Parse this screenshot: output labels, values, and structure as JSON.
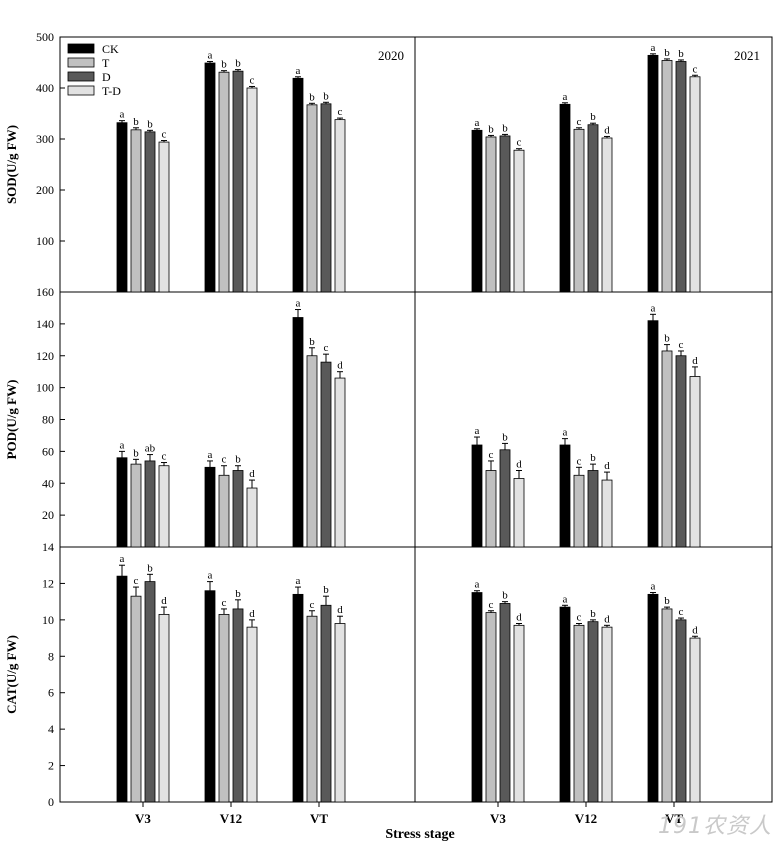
{
  "colors": {
    "CK": "#000000",
    "T": "#c0c0c0",
    "D": "#595959",
    "T-D": "#e2e2e2"
  },
  "legend": {
    "placement": "top-left",
    "entries": [
      "CK",
      "T",
      "D",
      "T-D"
    ]
  },
  "xlabel": "Stress stage",
  "chart_data": [
    {
      "type": "bar",
      "panel": "SOD",
      "year": "2020",
      "ylabel": "SOD(U/g FW)",
      "ylim": [
        0,
        500
      ],
      "yticks": [
        100,
        200,
        300,
        400,
        500
      ],
      "categories": [
        "V3",
        "V12",
        "VT"
      ],
      "series": [
        {
          "name": "CK",
          "values": [
            332,
            449,
            419
          ],
          "err": [
            4,
            3,
            3
          ],
          "letters": [
            "a",
            "a",
            "a"
          ]
        },
        {
          "name": "T",
          "values": [
            318,
            431,
            367
          ],
          "err": [
            4,
            3,
            3
          ],
          "letters": [
            "b",
            "b",
            "b"
          ]
        },
        {
          "name": "D",
          "values": [
            314,
            433,
            369
          ],
          "err": [
            3,
            3,
            3
          ],
          "letters": [
            "b",
            "b",
            "b"
          ]
        },
        {
          "name": "T-D",
          "values": [
            294,
            400,
            338
          ],
          "err": [
            3,
            3,
            3
          ],
          "letters": [
            "c",
            "c",
            "c"
          ]
        }
      ]
    },
    {
      "type": "bar",
      "panel": "SOD",
      "year": "2021",
      "ylim": [
        0,
        500
      ],
      "categories": [
        "V3",
        "V12",
        "VT"
      ],
      "series": [
        {
          "name": "CK",
          "values": [
            317,
            368,
            464
          ],
          "err": [
            3,
            3,
            3
          ],
          "letters": [
            "a",
            "a",
            "a"
          ]
        },
        {
          "name": "T",
          "values": [
            304,
            319,
            454
          ],
          "err": [
            3,
            3,
            3
          ],
          "letters": [
            "b",
            "c",
            "b"
          ]
        },
        {
          "name": "D",
          "values": [
            306,
            328,
            452
          ],
          "err": [
            3,
            3,
            3
          ],
          "letters": [
            "b",
            "b",
            "b"
          ]
        },
        {
          "name": "T-D",
          "values": [
            278,
            302,
            422
          ],
          "err": [
            3,
            3,
            3
          ],
          "letters": [
            "c",
            "d",
            "c"
          ]
        }
      ]
    },
    {
      "type": "bar",
      "panel": "POD",
      "ylabel": "POD(U/g FW)",
      "ylim": [
        0,
        160
      ],
      "yticks": [
        20,
        40,
        60,
        80,
        100,
        120,
        140,
        160
      ],
      "categories": [
        "V3",
        "V12",
        "VT"
      ],
      "series": [
        {
          "name": "CK",
          "values": [
            56,
            50,
            144
          ],
          "err": [
            4,
            4,
            5
          ],
          "letters": [
            "a",
            "a",
            "a"
          ]
        },
        {
          "name": "T",
          "values": [
            52,
            45,
            120
          ],
          "err": [
            3,
            6,
            5
          ],
          "letters": [
            "b",
            "c",
            "b"
          ]
        },
        {
          "name": "D",
          "values": [
            54,
            48,
            116
          ],
          "err": [
            4,
            3,
            5
          ],
          "letters": [
            "ab",
            "b",
            "c"
          ]
        },
        {
          "name": "T-D",
          "values": [
            51,
            37,
            106
          ],
          "err": [
            2,
            5,
            4
          ],
          "letters": [
            "c",
            "d",
            "d"
          ]
        }
      ]
    },
    {
      "type": "bar",
      "panel": "POD",
      "ylim": [
        0,
        160
      ],
      "categories": [
        "V3",
        "V12",
        "VT"
      ],
      "series": [
        {
          "name": "CK",
          "values": [
            64,
            64,
            142
          ],
          "err": [
            5,
            4,
            4
          ],
          "letters": [
            "a",
            "a",
            "a"
          ]
        },
        {
          "name": "T",
          "values": [
            48,
            45,
            123
          ],
          "err": [
            6,
            5,
            4
          ],
          "letters": [
            "c",
            "c",
            "b"
          ]
        },
        {
          "name": "D",
          "values": [
            61,
            48,
            120
          ],
          "err": [
            4,
            4,
            3
          ],
          "letters": [
            "b",
            "b",
            "c"
          ]
        },
        {
          "name": "T-D",
          "values": [
            43,
            42,
            107
          ],
          "err": [
            5,
            5,
            6
          ],
          "letters": [
            "d",
            "d",
            "d"
          ]
        }
      ]
    },
    {
      "type": "bar",
      "panel": "CAT",
      "ylabel": "CAT(U/g FW)",
      "ylim": [
        0,
        14
      ],
      "yticks": [
        0,
        2,
        4,
        6,
        8,
        10,
        12,
        14
      ],
      "categories": [
        "V3",
        "V12",
        "VT"
      ],
      "series": [
        {
          "name": "CK",
          "values": [
            12.4,
            11.6,
            11.4
          ],
          "err": [
            0.6,
            0.5,
            0.4
          ],
          "letters": [
            "a",
            "a",
            "a"
          ]
        },
        {
          "name": "T",
          "values": [
            11.3,
            10.3,
            10.2
          ],
          "err": [
            0.5,
            0.3,
            0.3
          ],
          "letters": [
            "c",
            "c",
            "c"
          ]
        },
        {
          "name": "D",
          "values": [
            12.1,
            10.6,
            10.8
          ],
          "err": [
            0.4,
            0.5,
            0.5
          ],
          "letters": [
            "b",
            "b",
            "b"
          ]
        },
        {
          "name": "T-D",
          "values": [
            10.3,
            9.6,
            9.8
          ],
          "err": [
            0.4,
            0.4,
            0.4
          ],
          "letters": [
            "d",
            "d",
            "d"
          ]
        }
      ]
    },
    {
      "type": "bar",
      "panel": "CAT",
      "ylim": [
        0,
        14
      ],
      "categories": [
        "V3",
        "V12",
        "VT"
      ],
      "series": [
        {
          "name": "CK",
          "values": [
            11.5,
            10.7,
            11.4
          ],
          "err": [
            0.1,
            0.1,
            0.1
          ],
          "letters": [
            "a",
            "a",
            "a"
          ]
        },
        {
          "name": "T",
          "values": [
            10.4,
            9.7,
            10.6
          ],
          "err": [
            0.1,
            0.1,
            0.1
          ],
          "letters": [
            "c",
            "c",
            "b"
          ]
        },
        {
          "name": "D",
          "values": [
            10.9,
            9.9,
            10.0
          ],
          "err": [
            0.1,
            0.1,
            0.1
          ],
          "letters": [
            "b",
            "b",
            "c"
          ]
        },
        {
          "name": "T-D",
          "values": [
            9.7,
            9.6,
            9.0
          ],
          "err": [
            0.1,
            0.1,
            0.1
          ],
          "letters": [
            "d",
            "d",
            "d"
          ]
        }
      ]
    }
  ],
  "watermark": "191农资人"
}
